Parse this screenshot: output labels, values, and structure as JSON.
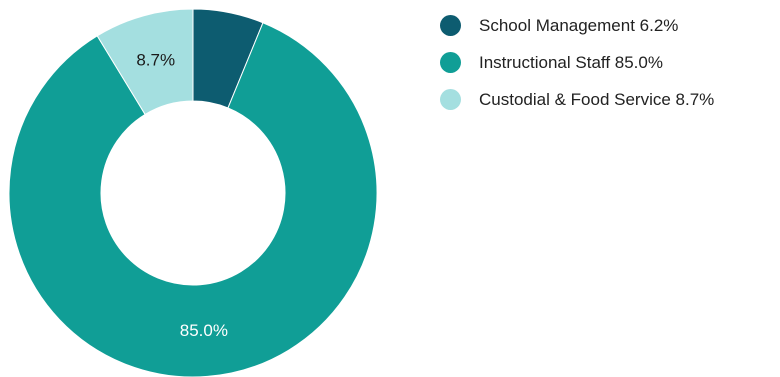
{
  "chart_data": {
    "type": "pie",
    "donut": true,
    "title": "",
    "legend_position": "top-right",
    "slices": [
      {
        "label": "School Management",
        "value": 6.2,
        "display": "6.2%",
        "color": "#0d5c70",
        "label_color": "#ffffff",
        "show_label": false
      },
      {
        "label": "Instructional Staff",
        "value": 85.0,
        "display": "85.0%",
        "color": "#109e96",
        "label_color": "#ffffff",
        "show_label": true
      },
      {
        "label": "Custodial & Food Service",
        "value": 8.7,
        "display": "8.7%",
        "color": "#a4dfe0",
        "label_color": "#1a1a1a",
        "show_label": true
      }
    ]
  }
}
